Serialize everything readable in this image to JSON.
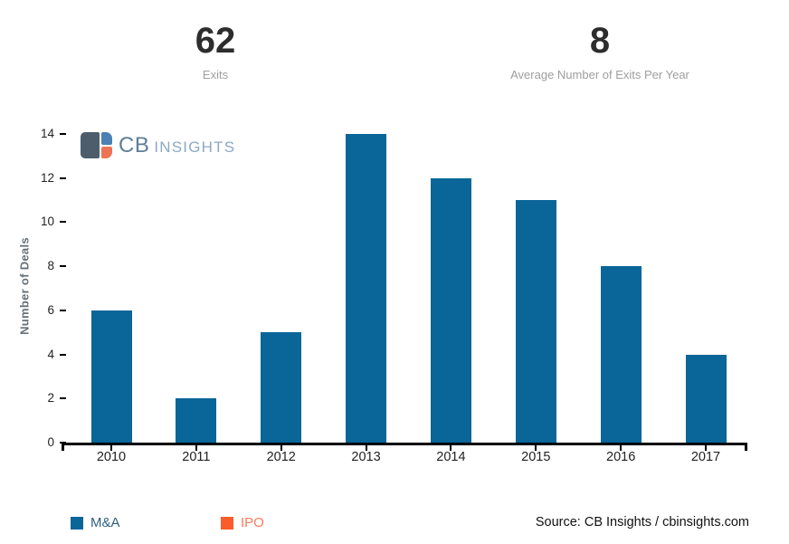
{
  "header": {
    "stats": [
      {
        "value": "62",
        "label": "Exits"
      },
      {
        "value": "8",
        "label": "Average Number of Exits Per Year"
      }
    ]
  },
  "logo": {
    "primary": "CB",
    "secondary": "INSIGHTS"
  },
  "chart_data": {
    "type": "bar",
    "categories": [
      "2010",
      "2011",
      "2012",
      "2013",
      "2014",
      "2015",
      "2016",
      "2017"
    ],
    "series": [
      {
        "name": "M&A",
        "color": "#0a6598",
        "values": [
          6,
          2,
          5,
          14,
          12,
          11,
          8,
          4
        ]
      },
      {
        "name": "IPO",
        "color": "#fb5c2c",
        "values": [
          0,
          0,
          0,
          0,
          0,
          0,
          0,
          0
        ]
      }
    ],
    "title": "",
    "xlabel": "",
    "ylabel": "Number of Deals",
    "ylim": [
      0,
      14
    ],
    "yticks": [
      0,
      2,
      4,
      6,
      8,
      10,
      12,
      14
    ],
    "grid": false,
    "legend_position": "bottom"
  },
  "legend": {
    "items": [
      {
        "label": "M&A",
        "swatch": "#0a6598",
        "text_color": "#2e5f80"
      },
      {
        "label": "IPO",
        "swatch": "#fb5c2c",
        "text_color": "#fa7c5b"
      }
    ]
  },
  "footer": {
    "source": "Source: CB Insights / cbinsights.com"
  },
  "colors": {
    "bar_blue": "#0a6598",
    "ipo_orange": "#fb5c2c",
    "logo_slate": "#4d5d6c",
    "logo_blue": "#4a80b4",
    "logo_orange": "#ee7354",
    "logo_text_primary": "#5e7e97",
    "logo_text_secondary": "#8ca8c5",
    "stat_value": "#2d2d2d",
    "stat_label": "#9e9e9e",
    "axis_text": "#222222",
    "axis_line": "#000000",
    "ylabel_text": "#667078"
  }
}
